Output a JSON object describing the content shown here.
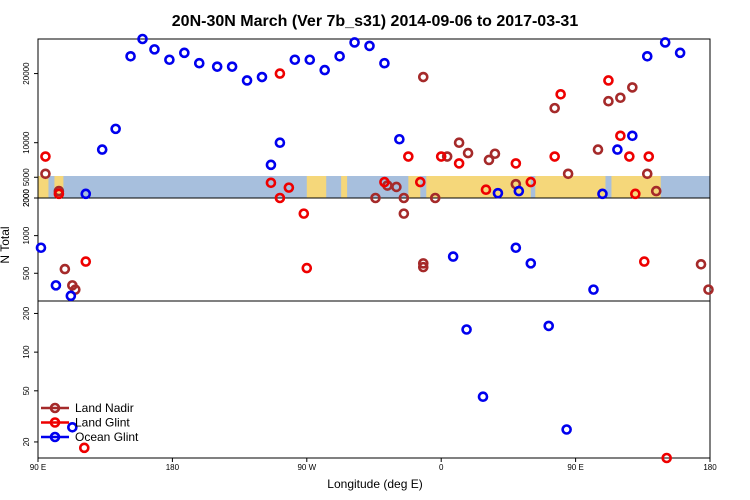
{
  "chart_data": {
    "type": "scatter",
    "title": "20N-30N March (Ver 7b_s31)   2014-09-06 to 2017-03-31",
    "xlabel": "Longitude (deg E)",
    "ylabel": "N Total",
    "x_ticks": [
      {
        "value": 90,
        "label": "90 E"
      },
      {
        "value": 180,
        "label": "180"
      },
      {
        "value": 270,
        "label": "90 W"
      },
      {
        "value": 360,
        "label": "0"
      },
      {
        "value": 450,
        "label": "90 E"
      },
      {
        "value": 540,
        "label": "180"
      }
    ],
    "xlim": [
      90,
      540
    ],
    "panels": [
      {
        "name": "upper",
        "scale": "linear",
        "ylim": [
          2000,
          25000
        ],
        "ticks": [
          2000,
          5000,
          10000,
          20000
        ]
      },
      {
        "name": "middle",
        "scale": "log",
        "ylim": [
          300,
          2000
        ],
        "ticks": [
          500,
          1000,
          2000
        ]
      },
      {
        "name": "lower",
        "scale": "log",
        "ylim": [
          15,
          250
        ],
        "ticks": [
          20,
          50,
          100,
          200
        ]
      }
    ],
    "legend": {
      "position": "bottom-left"
    },
    "series": [
      {
        "name": "Land Nadir",
        "color": "#a52a2a",
        "points": [
          [
            95,
            5500
          ],
          [
            104,
            3000
          ],
          [
            316,
            2000
          ],
          [
            324,
            3800
          ],
          [
            330,
            3600
          ],
          [
            348,
            19500
          ],
          [
            335,
            2000
          ],
          [
            348,
            600
          ],
          [
            115,
            370
          ],
          [
            356,
            2000
          ],
          [
            372,
            10000
          ],
          [
            364,
            8000
          ],
          [
            378,
            8500
          ],
          [
            392,
            7500
          ],
          [
            396,
            8400
          ],
          [
            410,
            4000
          ],
          [
            436,
            15000
          ],
          [
            445,
            5500
          ],
          [
            465,
            9000
          ],
          [
            472,
            16000
          ],
          [
            480,
            16500
          ],
          [
            488,
            18000
          ],
          [
            498,
            5500
          ],
          [
            504,
            3000
          ],
          [
            534,
            590
          ],
          [
            348,
            560
          ],
          [
            539,
            370
          ],
          [
            108,
            540
          ],
          [
            113,
            400
          ],
          [
            335,
            1500
          ]
        ]
      },
      {
        "name": "Land Glint",
        "color": "#ee0000",
        "points": [
          [
            95,
            8000
          ],
          [
            104,
            2600
          ],
          [
            246,
            4200
          ],
          [
            252,
            20000
          ],
          [
            252,
            2000
          ],
          [
            258,
            3500
          ],
          [
            268,
            1500
          ],
          [
            270,
            550
          ],
          [
            322,
            4300
          ],
          [
            338,
            8000
          ],
          [
            346,
            4300
          ],
          [
            360,
            8000
          ],
          [
            372,
            7000
          ],
          [
            390,
            3200
          ],
          [
            410,
            7000
          ],
          [
            420,
            4300
          ],
          [
            436,
            8000
          ],
          [
            440,
            17000
          ],
          [
            472,
            19000
          ],
          [
            480,
            11000
          ],
          [
            486,
            8000
          ],
          [
            490,
            2600
          ],
          [
            496,
            620
          ],
          [
            499,
            8000
          ],
          [
            511,
            15
          ],
          [
            122,
            620
          ],
          [
            121,
            18
          ]
        ]
      },
      {
        "name": "Ocean Glint",
        "color": "#0000ee",
        "points": [
          [
            92,
            800
          ],
          [
            102,
            400
          ],
          [
            113,
            26
          ],
          [
            122,
            2600
          ],
          [
            133,
            9000
          ],
          [
            142,
            12000
          ],
          [
            152,
            22500
          ],
          [
            160,
            25000
          ],
          [
            168,
            23500
          ],
          [
            178,
            22000
          ],
          [
            188,
            23000
          ],
          [
            198,
            21500
          ],
          [
            210,
            21000
          ],
          [
            220,
            21000
          ],
          [
            230,
            19000
          ],
          [
            240,
            19500
          ],
          [
            246,
            6800
          ],
          [
            252,
            10000
          ],
          [
            262,
            22000
          ],
          [
            272,
            22000
          ],
          [
            282,
            20500
          ],
          [
            292,
            22500
          ],
          [
            302,
            24500
          ],
          [
            312,
            24000
          ],
          [
            322,
            21500
          ],
          [
            332,
            10500
          ],
          [
            368,
            680
          ],
          [
            377,
            150
          ],
          [
            388,
            45
          ],
          [
            398,
            2700
          ],
          [
            410,
            800
          ],
          [
            412,
            3000
          ],
          [
            420,
            600
          ],
          [
            432,
            160
          ],
          [
            444,
            25
          ],
          [
            462,
            370
          ],
          [
            468,
            2600
          ],
          [
            478,
            9000
          ],
          [
            488,
            11000
          ],
          [
            498,
            22500
          ],
          [
            510,
            24500
          ],
          [
            520,
            23000
          ],
          [
            112,
            330
          ]
        ]
      }
    ]
  }
}
